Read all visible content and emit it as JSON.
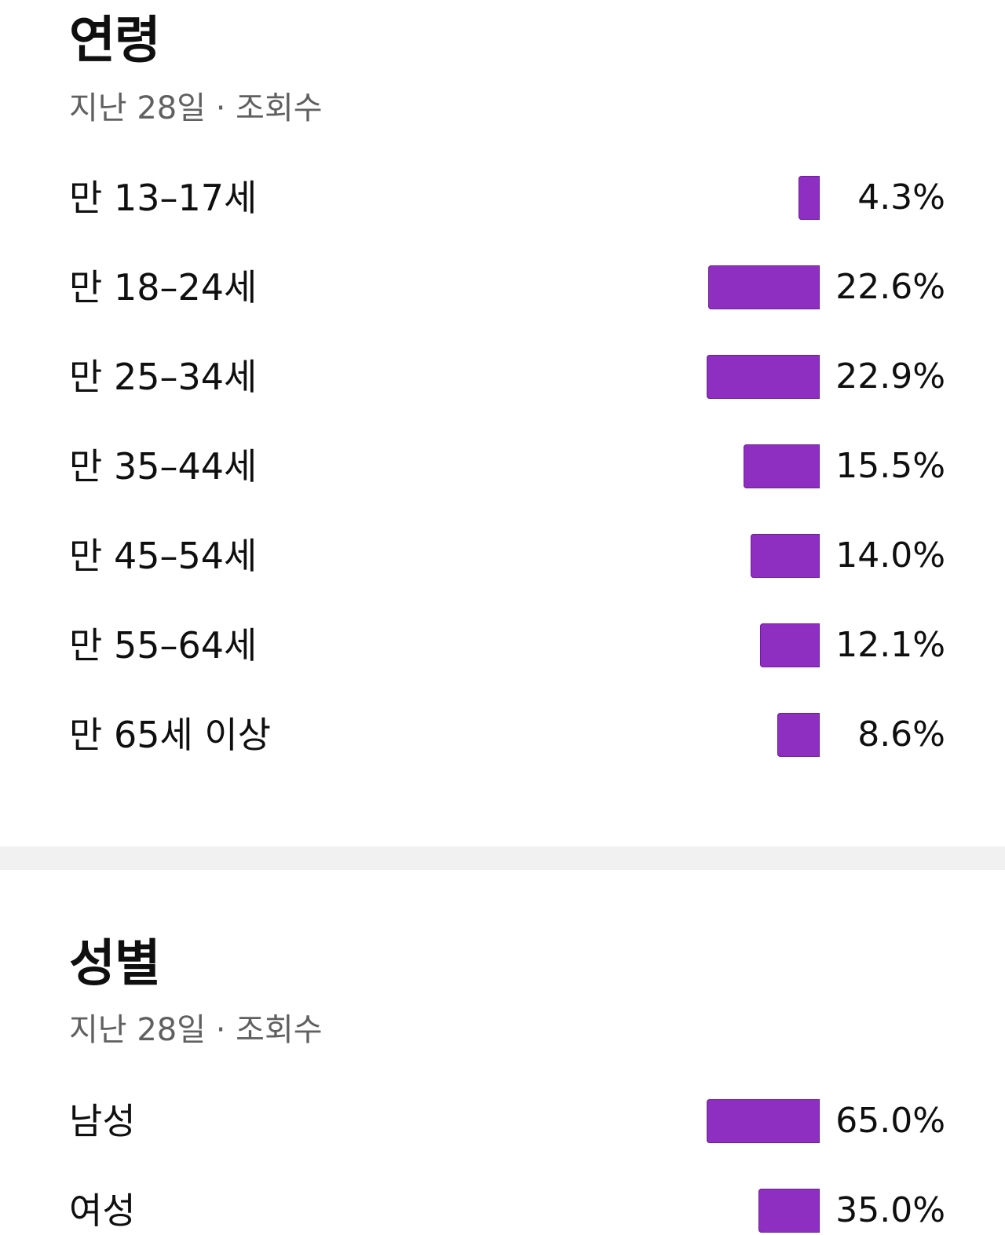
{
  "age": {
    "title": "연령",
    "subtitle": "지난 28일 · 조회수",
    "rows": [
      {
        "label": "만 13–17세",
        "value": "4.3%",
        "pct": 4.3
      },
      {
        "label": "만 18–24세",
        "value": "22.6%",
        "pct": 22.6
      },
      {
        "label": "만 25–34세",
        "value": "22.9%",
        "pct": 22.9
      },
      {
        "label": "만 35–44세",
        "value": "15.5%",
        "pct": 15.5
      },
      {
        "label": "만 45–54세",
        "value": "14.0%",
        "pct": 14.0
      },
      {
        "label": "만 55–64세",
        "value": "12.1%",
        "pct": 12.1
      },
      {
        "label": "만 65세 이상",
        "value": "8.6%",
        "pct": 8.6
      }
    ]
  },
  "gender": {
    "title": "성별",
    "subtitle": "지난 28일 · 조회수",
    "rows": [
      {
        "label": "남성",
        "value": "65.0%",
        "pct": 65.0
      },
      {
        "label": "여성",
        "value": "35.0%",
        "pct": 35.0
      }
    ]
  },
  "colors": {
    "bar": "#8e2fc2",
    "divider": "#f1f1f1",
    "subtitle_text": "#606060"
  }
}
